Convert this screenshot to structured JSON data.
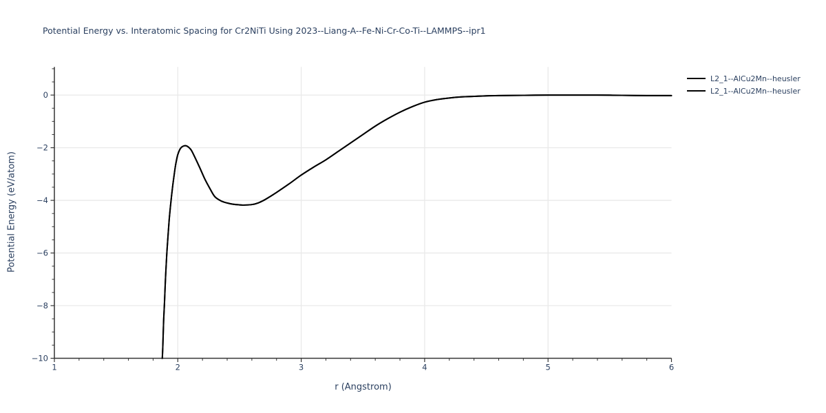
{
  "title": "Potential Energy vs. Interatomic Spacing for Cr2NiTi Using 2023--Liang-A--Fe-Ni-Cr-Co-Ti--LAMMPS--ipr1",
  "colors": {
    "background": "#ffffff",
    "text": "#2a3f5f",
    "axis_line": "#333333",
    "tick_mark": "#333333",
    "gridline": "#e9e9e9",
    "curve": "#000000"
  },
  "legend": {
    "position": "top-right-outside",
    "items": [
      {
        "label": "L2_1--AlCu2Mn--heusler",
        "color": "#000000"
      },
      {
        "label": "L2_1--AlCu2Mn--heusler",
        "color": "#000000"
      }
    ]
  },
  "chart_data": {
    "type": "line",
    "title": "Potential Energy vs. Interatomic Spacing for Cr2NiTi Using 2023--Liang-A--Fe-Ni-Cr-Co-Ti--LAMMPS--ipr1",
    "xlabel": "r (Angstrom)",
    "ylabel": "Potential Energy (eV/atom)",
    "xlim": [
      1,
      6
    ],
    "ylim": [
      -10,
      1.07
    ],
    "grid": true,
    "x_major_ticks": [
      1,
      2,
      3,
      4,
      5,
      6
    ],
    "x_tick_labels": [
      "1",
      "2",
      "3",
      "4",
      "5",
      "6"
    ],
    "x_minor_step": 0.2,
    "x_gridlines": [
      2,
      3,
      4,
      5
    ],
    "y_major_ticks": [
      0,
      -2,
      -4,
      -6,
      -8,
      -10
    ],
    "y_tick_labels": [
      "0",
      "−2",
      "−4",
      "−6",
      "−8",
      "−10"
    ],
    "y_minor_step": 0.5,
    "y_gridlines": [
      0,
      -2,
      -4,
      -6,
      -8
    ],
    "legend_position": "top-right-outside",
    "series": [
      {
        "name": "L2_1--AlCu2Mn--heusler",
        "color": "#000000",
        "line_width": 2,
        "points": [
          [
            1.874,
            -10.05
          ],
          [
            1.879,
            -9.5
          ],
          [
            1.885,
            -8.6
          ],
          [
            1.892,
            -7.9
          ],
          [
            1.9,
            -7.0
          ],
          [
            1.91,
            -6.1
          ],
          [
            1.92,
            -5.4
          ],
          [
            1.93,
            -4.75
          ],
          [
            1.94,
            -4.25
          ],
          [
            1.95,
            -3.8
          ],
          [
            1.96,
            -3.4
          ],
          [
            1.97,
            -3.05
          ],
          [
            1.98,
            -2.72
          ],
          [
            1.99,
            -2.46
          ],
          [
            2.0,
            -2.26
          ],
          [
            2.015,
            -2.08
          ],
          [
            2.03,
            -1.98
          ],
          [
            2.05,
            -1.93
          ],
          [
            2.07,
            -1.93
          ],
          [
            2.09,
            -1.99
          ],
          [
            2.11,
            -2.1
          ],
          [
            2.14,
            -2.38
          ],
          [
            2.18,
            -2.78
          ],
          [
            2.22,
            -3.2
          ],
          [
            2.26,
            -3.55
          ],
          [
            2.3,
            -3.86
          ],
          [
            2.35,
            -4.02
          ],
          [
            2.4,
            -4.1
          ],
          [
            2.45,
            -4.15
          ],
          [
            2.5,
            -4.17
          ],
          [
            2.53,
            -4.18
          ],
          [
            2.6,
            -4.16
          ],
          [
            2.65,
            -4.1
          ],
          [
            2.7,
            -3.99
          ],
          [
            2.75,
            -3.85
          ],
          [
            2.8,
            -3.7
          ],
          [
            2.9,
            -3.38
          ],
          [
            3.0,
            -3.04
          ],
          [
            3.1,
            -2.74
          ],
          [
            3.2,
            -2.46
          ],
          [
            3.3,
            -2.14
          ],
          [
            3.4,
            -1.82
          ],
          [
            3.5,
            -1.5
          ],
          [
            3.6,
            -1.18
          ],
          [
            3.7,
            -0.9
          ],
          [
            3.8,
            -0.65
          ],
          [
            3.9,
            -0.44
          ],
          [
            4.0,
            -0.27
          ],
          [
            4.1,
            -0.17
          ],
          [
            4.2,
            -0.11
          ],
          [
            4.3,
            -0.07
          ],
          [
            4.4,
            -0.05
          ],
          [
            4.5,
            -0.03
          ],
          [
            4.6,
            -0.02
          ],
          [
            4.8,
            -0.01
          ],
          [
            5.0,
            0.0
          ],
          [
            5.2,
            0.0
          ],
          [
            5.4,
            0.0
          ],
          [
            5.6,
            -0.01
          ],
          [
            5.8,
            -0.02
          ],
          [
            6.0,
            -0.02
          ]
        ]
      },
      {
        "name": "L2_1--AlCu2Mn--heusler",
        "color": "#000000",
        "line_width": 2,
        "points": [
          [
            1.874,
            -10.05
          ],
          [
            1.879,
            -9.5
          ],
          [
            1.885,
            -8.6
          ],
          [
            1.892,
            -7.9
          ],
          [
            1.9,
            -7.0
          ],
          [
            1.91,
            -6.1
          ],
          [
            1.92,
            -5.4
          ],
          [
            1.93,
            -4.75
          ],
          [
            1.94,
            -4.25
          ],
          [
            1.95,
            -3.8
          ],
          [
            1.96,
            -3.4
          ],
          [
            1.97,
            -3.05
          ],
          [
            1.98,
            -2.72
          ],
          [
            1.99,
            -2.46
          ],
          [
            2.0,
            -2.26
          ],
          [
            2.015,
            -2.08
          ],
          [
            2.03,
            -1.98
          ],
          [
            2.05,
            -1.93
          ],
          [
            2.07,
            -1.93
          ],
          [
            2.09,
            -1.99
          ],
          [
            2.11,
            -2.1
          ],
          [
            2.14,
            -2.38
          ],
          [
            2.18,
            -2.78
          ],
          [
            2.22,
            -3.2
          ],
          [
            2.26,
            -3.55
          ],
          [
            2.3,
            -3.86
          ],
          [
            2.35,
            -4.02
          ],
          [
            2.4,
            -4.1
          ],
          [
            2.45,
            -4.15
          ],
          [
            2.5,
            -4.17
          ],
          [
            2.53,
            -4.18
          ],
          [
            2.6,
            -4.16
          ],
          [
            2.65,
            -4.1
          ],
          [
            2.7,
            -3.99
          ],
          [
            2.75,
            -3.85
          ],
          [
            2.8,
            -3.7
          ],
          [
            2.9,
            -3.38
          ],
          [
            3.0,
            -3.04
          ],
          [
            3.1,
            -2.74
          ],
          [
            3.2,
            -2.46
          ],
          [
            3.3,
            -2.14
          ],
          [
            3.4,
            -1.82
          ],
          [
            3.5,
            -1.5
          ],
          [
            3.6,
            -1.18
          ],
          [
            3.7,
            -0.9
          ],
          [
            3.8,
            -0.65
          ],
          [
            3.9,
            -0.44
          ],
          [
            4.0,
            -0.27
          ],
          [
            4.1,
            -0.17
          ],
          [
            4.2,
            -0.11
          ],
          [
            4.3,
            -0.07
          ],
          [
            4.4,
            -0.05
          ],
          [
            4.5,
            -0.03
          ],
          [
            4.6,
            -0.02
          ],
          [
            4.8,
            -0.01
          ],
          [
            5.0,
            0.0
          ],
          [
            5.2,
            0.0
          ],
          [
            5.4,
            0.0
          ],
          [
            5.6,
            -0.01
          ],
          [
            5.8,
            -0.02
          ],
          [
            6.0,
            -0.02
          ]
        ]
      }
    ]
  }
}
